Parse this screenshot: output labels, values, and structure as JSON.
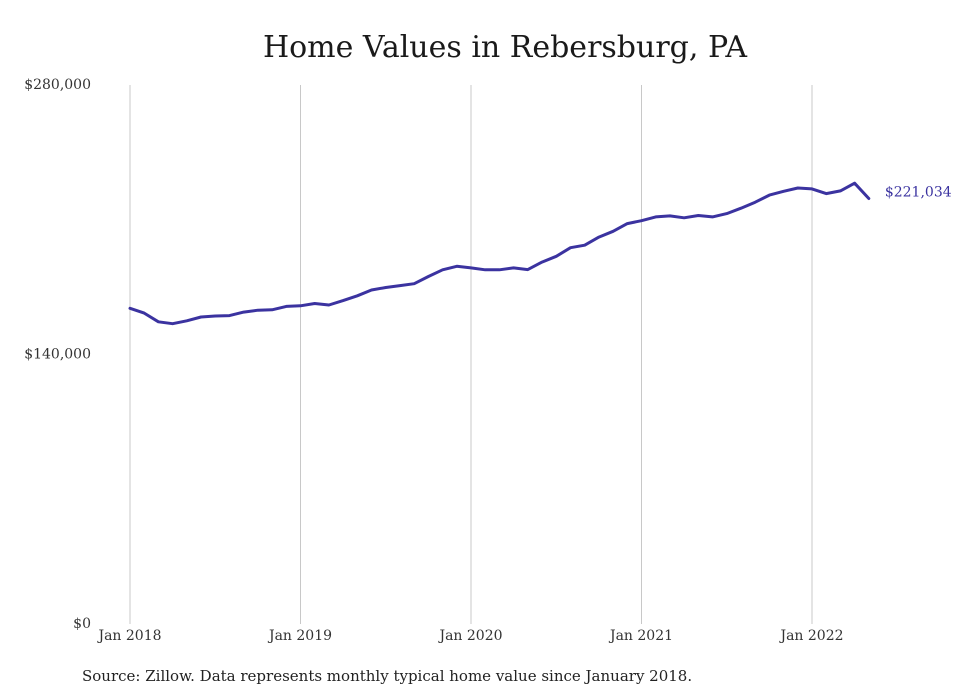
{
  "chart_data": {
    "type": "line",
    "title": "Home Values in Rebersburg, PA",
    "xlabel": "",
    "ylabel": "",
    "ylim": [
      0,
      280000
    ],
    "y_ticks": [
      {
        "value": 0,
        "label": "$0"
      },
      {
        "value": 140000,
        "label": "$140,000"
      },
      {
        "value": 280000,
        "label": "$280,000"
      }
    ],
    "x_ticks": [
      {
        "date": "2018-01",
        "label": "Jan 2018"
      },
      {
        "date": "2019-01",
        "label": "Jan 2019"
      },
      {
        "date": "2020-01",
        "label": "Jan 2020"
      },
      {
        "date": "2021-01",
        "label": "Jan 2021"
      },
      {
        "date": "2022-01",
        "label": "Jan 2022"
      }
    ],
    "grid": "vertical",
    "line_color": "#3b33a0",
    "end_label": "$221,034",
    "series": [
      {
        "x": [
          "2018-01",
          "2018-02",
          "2018-03",
          "2018-04",
          "2018-05",
          "2018-06",
          "2018-07",
          "2018-08",
          "2018-09",
          "2018-10",
          "2018-11",
          "2018-12",
          "2019-01",
          "2019-02",
          "2019-03",
          "2019-04",
          "2019-05",
          "2019-06",
          "2019-07",
          "2019-08",
          "2019-09",
          "2019-10",
          "2019-11",
          "2019-12",
          "2020-01",
          "2020-02",
          "2020-03",
          "2020-04",
          "2020-05",
          "2020-06",
          "2020-07",
          "2020-08",
          "2020-09",
          "2020-10",
          "2020-11",
          "2020-12",
          "2021-01",
          "2021-02",
          "2021-03",
          "2021-04",
          "2021-05",
          "2021-06",
          "2021-07",
          "2021-08",
          "2021-09",
          "2021-10",
          "2021-11",
          "2021-12",
          "2022-01",
          "2022-02",
          "2022-03",
          "2022-04",
          "2022-05"
        ],
        "values": [
          164000,
          161500,
          157000,
          156000,
          157500,
          159500,
          160000,
          160200,
          162000,
          163000,
          163200,
          165000,
          165300,
          166500,
          165700,
          168000,
          170500,
          173500,
          174800,
          175800,
          176800,
          180500,
          184000,
          185800,
          185000,
          184000,
          184000,
          185000,
          184100,
          188000,
          191000,
          195500,
          196800,
          201000,
          204000,
          208000,
          209500,
          211500,
          212000,
          211000,
          212200,
          211500,
          213200,
          216000,
          219100,
          222800,
          224800,
          226500,
          226000,
          223600,
          225000,
          229000,
          221034
        ]
      }
    ]
  },
  "source_note": "Source: Zillow. Data represents monthly typical home value since January 2018."
}
